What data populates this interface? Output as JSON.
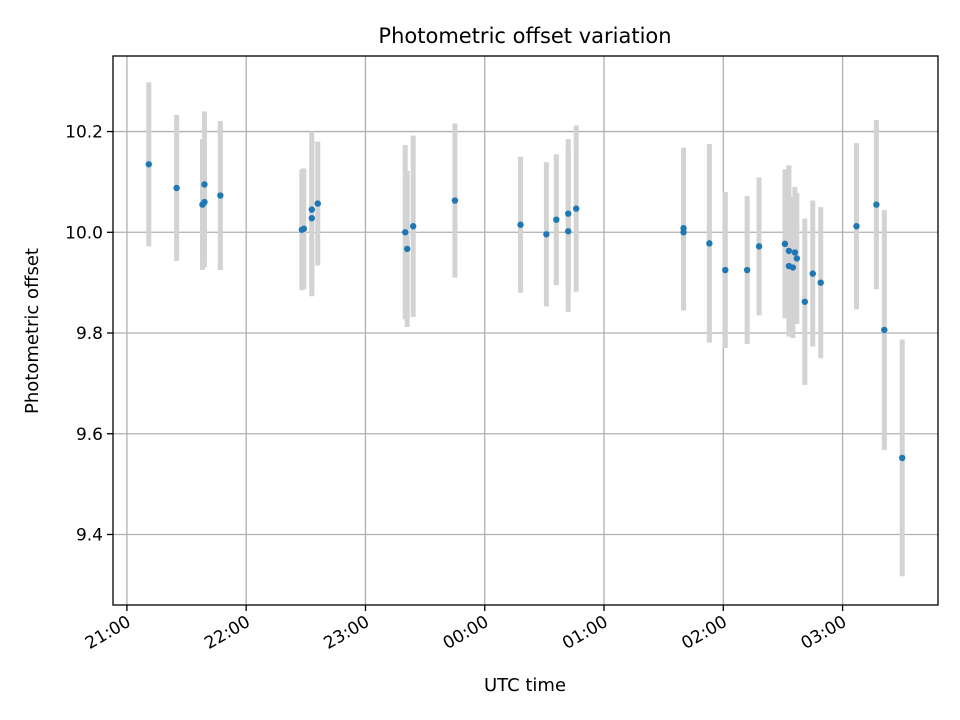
{
  "chart_data": {
    "type": "scatter",
    "title": "Photometric offset variation",
    "xlabel": "UTC time",
    "ylabel": "Photometric offset",
    "x_tick_labels": [
      "21:00",
      "22:00",
      "23:00",
      "00:00",
      "01:00",
      "02:00",
      "03:00"
    ],
    "x_tick_dates": [
      "2020-01-01T21:00",
      "2020-01-01T22:00",
      "2020-01-01T23:00",
      "2020-01-02T00:00",
      "2020-01-02T01:00",
      "2020-01-02T02:00",
      "2020-01-02T03:00"
    ],
    "xlim": [
      "2020-01-01T20:53",
      "2020-01-02T03:48"
    ],
    "y_ticks": [
      9.4,
      9.6,
      9.8,
      10.0,
      10.2
    ],
    "y_tick_labels": [
      "9.4",
      "9.6",
      "9.8",
      "10.0",
      "10.2"
    ],
    "ylim": [
      9.26,
      10.35
    ],
    "grid": true,
    "marker_color": "#1f77b4",
    "errorbar_color": "#d3d3d3",
    "points": [
      {
        "x": "2020-01-01T21:11",
        "y": 10.135,
        "err": 0.163
      },
      {
        "x": "2020-01-01T21:25",
        "y": 10.088,
        "err": 0.145
      },
      {
        "x": "2020-01-01T21:38",
        "y": 10.055,
        "err": 0.13
      },
      {
        "x": "2020-01-01T21:39",
        "y": 10.06,
        "err": 0.13
      },
      {
        "x": "2020-01-01T21:39",
        "y": 10.095,
        "err": 0.145
      },
      {
        "x": "2020-01-01T21:47",
        "y": 10.073,
        "err": 0.148
      },
      {
        "x": "2020-01-01T22:28",
        "y": 10.005,
        "err": 0.12
      },
      {
        "x": "2020-01-01T22:29",
        "y": 10.007,
        "err": 0.12
      },
      {
        "x": "2020-01-01T22:33",
        "y": 10.028,
        "err": 0.155
      },
      {
        "x": "2020-01-01T22:33",
        "y": 10.045,
        "err": 0.155
      },
      {
        "x": "2020-01-01T22:36",
        "y": 10.057,
        "err": 0.123
      },
      {
        "x": "2020-01-01T23:20",
        "y": 10.0,
        "err": 0.173
      },
      {
        "x": "2020-01-01T23:21",
        "y": 9.967,
        "err": 0.155
      },
      {
        "x": "2020-01-01T23:24",
        "y": 10.012,
        "err": 0.18
      },
      {
        "x": "2020-01-01T23:45",
        "y": 10.063,
        "err": 0.153
      },
      {
        "x": "2020-01-02T00:18",
        "y": 10.015,
        "err": 0.135
      },
      {
        "x": "2020-01-02T00:31",
        "y": 9.996,
        "err": 0.143
      },
      {
        "x": "2020-01-02T00:36",
        "y": 10.025,
        "err": 0.13
      },
      {
        "x": "2020-01-02T00:42",
        "y": 10.037,
        "err": 0.148
      },
      {
        "x": "2020-01-02T00:42",
        "y": 10.002,
        "err": 0.16
      },
      {
        "x": "2020-01-02T00:46",
        "y": 10.047,
        "err": 0.165
      },
      {
        "x": "2020-01-02T01:40",
        "y": 10.008,
        "err": 0.16
      },
      {
        "x": "2020-01-02T01:40",
        "y": 10.0,
        "err": 0.155
      },
      {
        "x": "2020-01-02T01:53",
        "y": 9.978,
        "err": 0.197
      },
      {
        "x": "2020-01-02T02:01",
        "y": 9.925,
        "err": 0.155
      },
      {
        "x": "2020-01-02T02:12",
        "y": 9.925,
        "err": 0.147
      },
      {
        "x": "2020-01-02T02:18",
        "y": 9.972,
        "err": 0.137
      },
      {
        "x": "2020-01-02T02:31",
        "y": 9.977,
        "err": 0.148
      },
      {
        "x": "2020-01-02T02:33",
        "y": 9.963,
        "err": 0.17
      },
      {
        "x": "2020-01-02T02:33",
        "y": 9.933,
        "err": 0.135
      },
      {
        "x": "2020-01-02T02:35",
        "y": 9.93,
        "err": 0.14
      },
      {
        "x": "2020-01-02T02:36",
        "y": 9.96,
        "err": 0.13
      },
      {
        "x": "2020-01-02T02:37",
        "y": 9.948,
        "err": 0.13
      },
      {
        "x": "2020-01-02T02:41",
        "y": 9.862,
        "err": 0.165
      },
      {
        "x": "2020-01-02T02:45",
        "y": 9.918,
        "err": 0.145
      },
      {
        "x": "2020-01-02T02:49",
        "y": 9.9,
        "err": 0.15
      },
      {
        "x": "2020-01-02T03:07",
        "y": 10.012,
        "err": 0.165
      },
      {
        "x": "2020-01-02T03:17",
        "y": 10.055,
        "err": 0.168
      },
      {
        "x": "2020-01-02T03:21",
        "y": 9.806,
        "err": 0.238
      },
      {
        "x": "2020-01-02T03:30",
        "y": 9.552,
        "err": 0.235
      }
    ]
  }
}
